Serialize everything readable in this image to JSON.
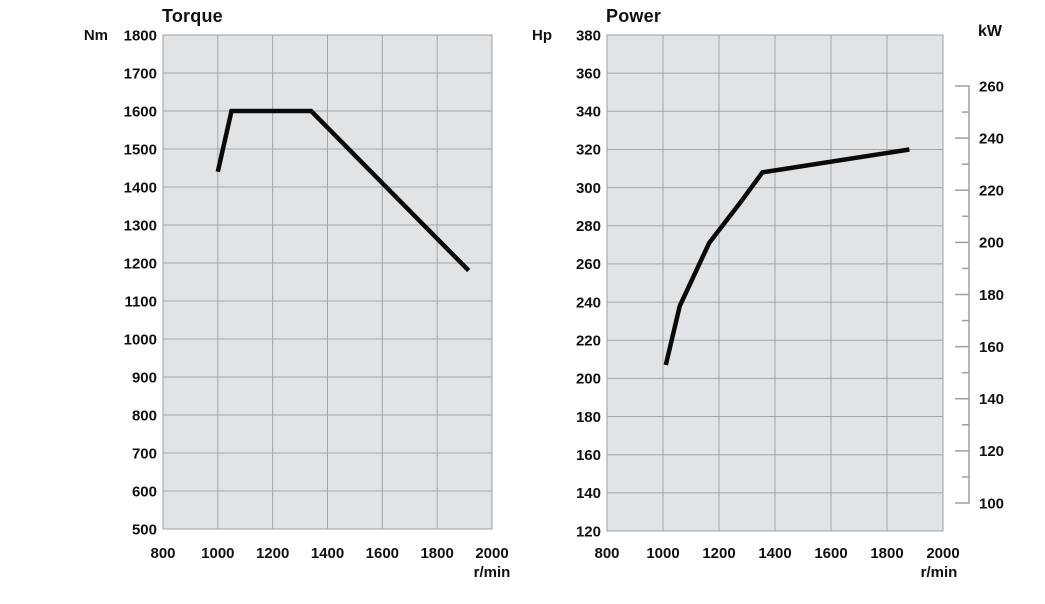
{
  "colors": {
    "background": "#ffffff",
    "plot_background": "#e0e4e7",
    "grid": "#a0a6ab",
    "plot_border": "#99a0a6",
    "curve": "#0a0a0a",
    "text": "#111111",
    "kw_axis_line": "#9aa1a7"
  },
  "chart_data": [
    {
      "type": "line",
      "id": "torque",
      "title": "Torque",
      "y_unit": "Nm",
      "x_unit": "r/min",
      "x_range": [
        800,
        2000
      ],
      "y_range": [
        500,
        1800
      ],
      "x_ticks": [
        800,
        1000,
        1200,
        1400,
        1600,
        1800,
        2000
      ],
      "y_ticks": [
        1800,
        1700,
        1600,
        1500,
        1400,
        1300,
        1200,
        1100,
        1000,
        900,
        800,
        700,
        600,
        500
      ],
      "grid": true,
      "legend": "none",
      "series": [
        {
          "name": "torque-curve",
          "points": [
            [
              1000,
              1440
            ],
            [
              1050,
              1600
            ],
            [
              1340,
              1600
            ],
            [
              1915,
              1180
            ]
          ]
        }
      ]
    },
    {
      "type": "line",
      "id": "power",
      "title": "Power",
      "y_unit": "Hp",
      "x_unit": "r/min",
      "x_range": [
        800,
        2000
      ],
      "y_range": [
        120,
        380
      ],
      "x_ticks": [
        800,
        1000,
        1200,
        1400,
        1600,
        1800,
        2000
      ],
      "y_ticks": [
        380,
        360,
        340,
        320,
        300,
        280,
        260,
        240,
        220,
        200,
        180,
        160,
        140,
        120
      ],
      "grid": true,
      "legend": "none",
      "secondary_y": {
        "unit": "kW",
        "min": 100,
        "max": 260,
        "label_step": 20,
        "minor_step": 10,
        "labels": [
          260,
          240,
          220,
          200,
          180,
          160,
          140,
          120,
          100
        ]
      },
      "series": [
        {
          "name": "power-curve",
          "points": [
            [
              1010,
              207
            ],
            [
              1060,
              238
            ],
            [
              1165,
              271
            ],
            [
              1275,
              292
            ],
            [
              1355,
              308
            ],
            [
              1880,
              320
            ]
          ]
        }
      ]
    }
  ]
}
